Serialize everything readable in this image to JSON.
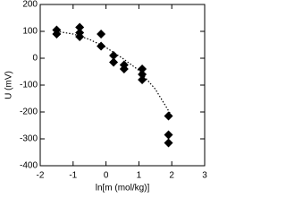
{
  "chart_data": {
    "type": "scatter",
    "x_label": "ln[m (mol/kg)]",
    "y_label": "U (mV)",
    "xlim": [
      -2,
      3
    ],
    "xticks": [
      -2,
      -1,
      0,
      1,
      2,
      3
    ],
    "ylim": [
      -400,
      200
    ],
    "yticks": [
      -400,
      -300,
      -200,
      -100,
      0,
      100,
      200
    ],
    "series": [
      {
        "marker": "diamond",
        "color": "#000000",
        "x": [
          -1.5,
          -1.5,
          -0.8,
          -0.8,
          -0.8,
          -0.15,
          -0.15,
          0.23,
          0.23,
          0.55,
          0.55,
          1.1,
          1.1,
          1.1,
          1.9,
          1.9,
          1.9
        ],
        "values": [
          105,
          90,
          115,
          95,
          80,
          90,
          45,
          10,
          -15,
          -25,
          -40,
          -40,
          -60,
          -80,
          -215,
          -285,
          -315
        ]
      },
      {
        "line": "dotted",
        "color": "#000000",
        "x": [
          -1.5,
          -1,
          -0.5,
          0,
          0.5,
          1,
          1.5,
          2
        ],
        "values": [
          100,
          90,
          70,
          40,
          0,
          -45,
          -115,
          -215
        ]
      }
    ]
  }
}
